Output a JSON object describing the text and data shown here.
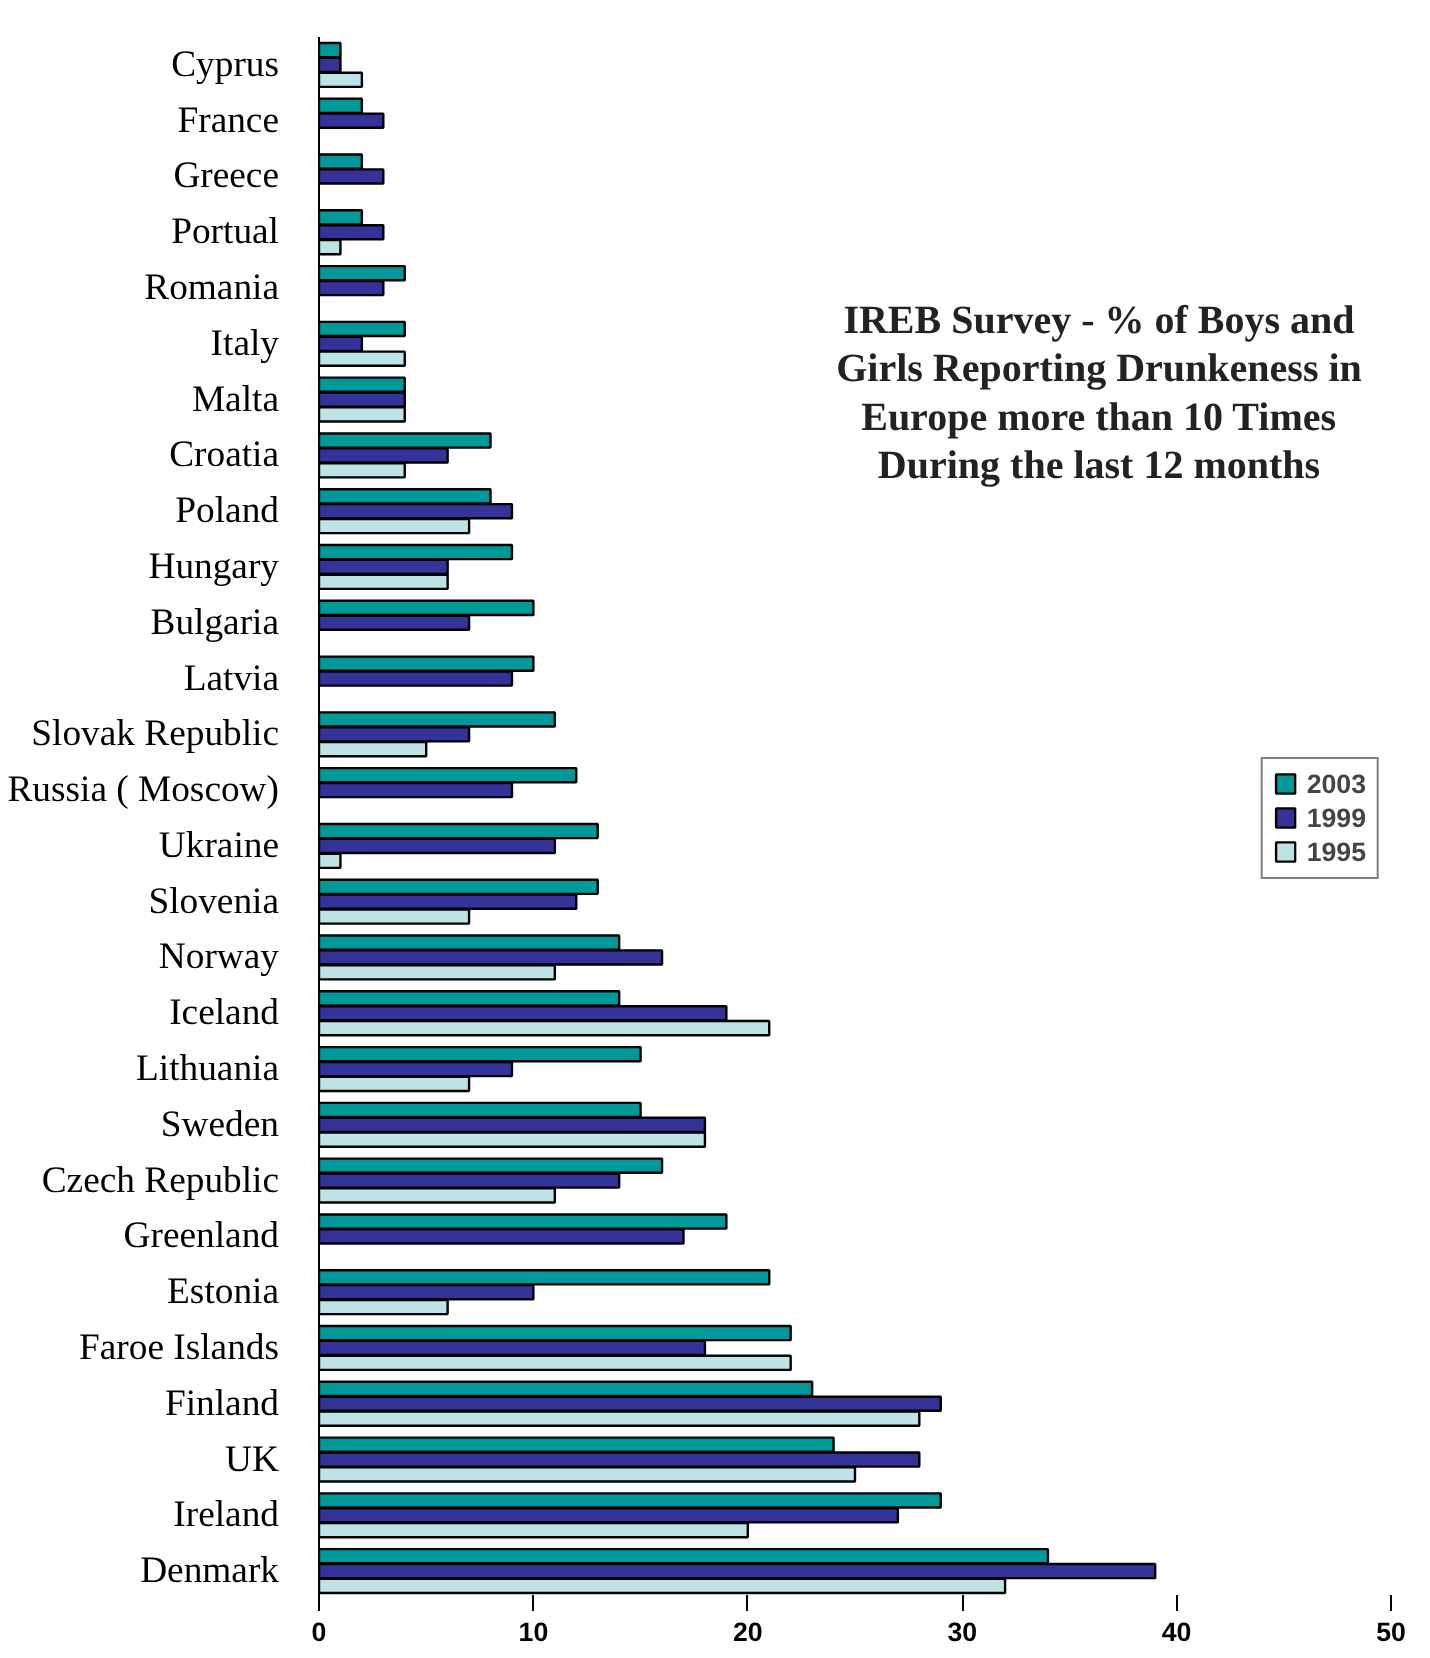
{
  "chart_data": {
    "type": "bar",
    "orientation": "horizontal",
    "title": "IREB Survey - % of Boys and Girls Reporting Drunkeness in Europe more than 10 Times During the last 12 months",
    "categories": [
      "Cyprus",
      "France",
      "Greece",
      "Portual",
      "Romania",
      "Italy",
      "Malta",
      "Croatia",
      "Poland",
      "Hungary",
      "Bulgaria",
      "Latvia",
      "Slovak Republic",
      "Russia ( Moscow)",
      "Ukraine",
      "Slovenia",
      "Norway",
      "Iceland",
      "Lithuania",
      "Sweden",
      "Czech Republic",
      "Greenland",
      "Estonia",
      "Faroe Islands",
      "Finland",
      "UK",
      "Ireland",
      "Denmark"
    ],
    "series": [
      {
        "name": "2003",
        "color": "#009999",
        "values": [
          1,
          2,
          2,
          2,
          4,
          4,
          4,
          8,
          8,
          9,
          10,
          10,
          11,
          12,
          13,
          13,
          14,
          14,
          15,
          15,
          16,
          19,
          21,
          22,
          23,
          24,
          29,
          34
        ]
      },
      {
        "name": "1999",
        "color": "#333399",
        "values": [
          1,
          3,
          3,
          3,
          3,
          2,
          4,
          6,
          9,
          6,
          7,
          9,
          7,
          9,
          11,
          12,
          16,
          19,
          9,
          18,
          14,
          17,
          10,
          18,
          29,
          28,
          27,
          39
        ]
      },
      {
        "name": "1995",
        "color": "#bde3e6",
        "values": [
          2,
          null,
          null,
          1,
          null,
          4,
          4,
          4,
          7,
          6,
          null,
          null,
          5,
          null,
          1,
          7,
          11,
          21,
          7,
          18,
          11,
          null,
          6,
          22,
          28,
          25,
          20,
          32
        ]
      }
    ],
    "xlim": [
      0,
      50
    ],
    "xticks": [
      0,
      10,
      20,
      30,
      40,
      50
    ],
    "grid": false,
    "legend": "right"
  }
}
